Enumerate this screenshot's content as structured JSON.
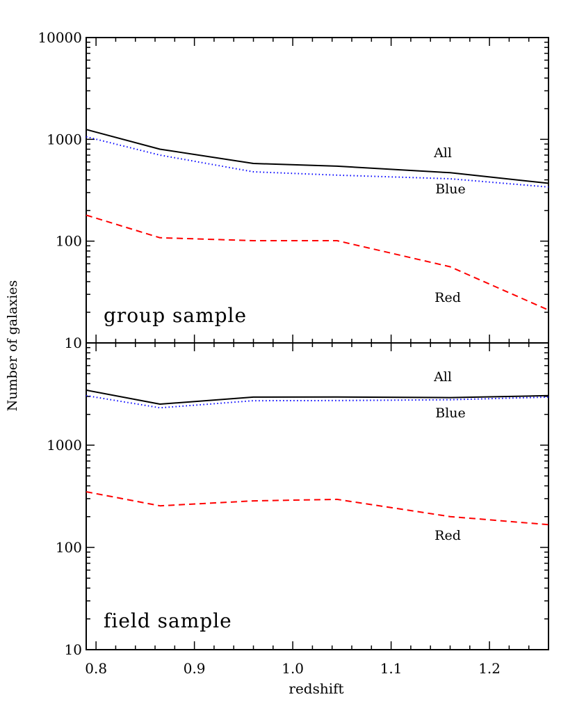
{
  "figure": {
    "ylabel": "Number of galaxies",
    "xlabel": "redshift"
  },
  "chart_data": [
    {
      "type": "line",
      "panel": "top",
      "annotation": "group sample",
      "xlim": [
        0.79,
        1.26
      ],
      "ylim": [
        10,
        10000
      ],
      "yscale": "log",
      "xticks": [
        0.8,
        0.9,
        1.0,
        1.1,
        1.2
      ],
      "yticks": [
        10,
        100,
        1000,
        10000
      ],
      "ytick_labels": [
        "10",
        "100",
        "1000",
        "10000"
      ],
      "x": [
        0.79,
        0.865,
        0.96,
        1.045,
        1.16,
        1.26
      ],
      "series": [
        {
          "name": "All",
          "color": "#000000",
          "style": "solid",
          "values": [
            1250,
            800,
            580,
            545,
            470,
            370
          ]
        },
        {
          "name": "Blue",
          "color": "#0000ff",
          "style": "dotted",
          "values": [
            1060,
            700,
            480,
            445,
            410,
            340
          ]
        },
        {
          "name": "Red",
          "color": "#ff0000",
          "style": "dashed",
          "values": [
            180,
            108,
            101,
            101,
            56,
            21
          ]
        }
      ]
    },
    {
      "type": "line",
      "panel": "bottom",
      "annotation": "field sample",
      "xlim": [
        0.79,
        1.26
      ],
      "ylim": [
        10,
        10000
      ],
      "yscale": "log",
      "xticks": [
        0.8,
        0.9,
        1.0,
        1.1,
        1.2
      ],
      "xtick_labels": [
        "0.8",
        "0.9",
        "1.0",
        "1.1",
        "1.2"
      ],
      "yticks": [
        10,
        100,
        1000
      ],
      "ytick_labels": [
        "10",
        "100",
        "1000"
      ],
      "x": [
        0.79,
        0.865,
        0.96,
        1.045,
        1.16,
        1.26
      ],
      "series": [
        {
          "name": "All",
          "color": "#000000",
          "style": "solid",
          "values": [
            3450,
            2520,
            2950,
            2960,
            2920,
            3050
          ]
        },
        {
          "name": "Blue",
          "color": "#0000ff",
          "style": "dotted",
          "values": [
            3050,
            2320,
            2720,
            2730,
            2780,
            2950
          ]
        },
        {
          "name": "Red",
          "color": "#ff0000",
          "style": "dashed",
          "values": [
            350,
            255,
            285,
            295,
            200,
            167
          ]
        }
      ]
    }
  ]
}
